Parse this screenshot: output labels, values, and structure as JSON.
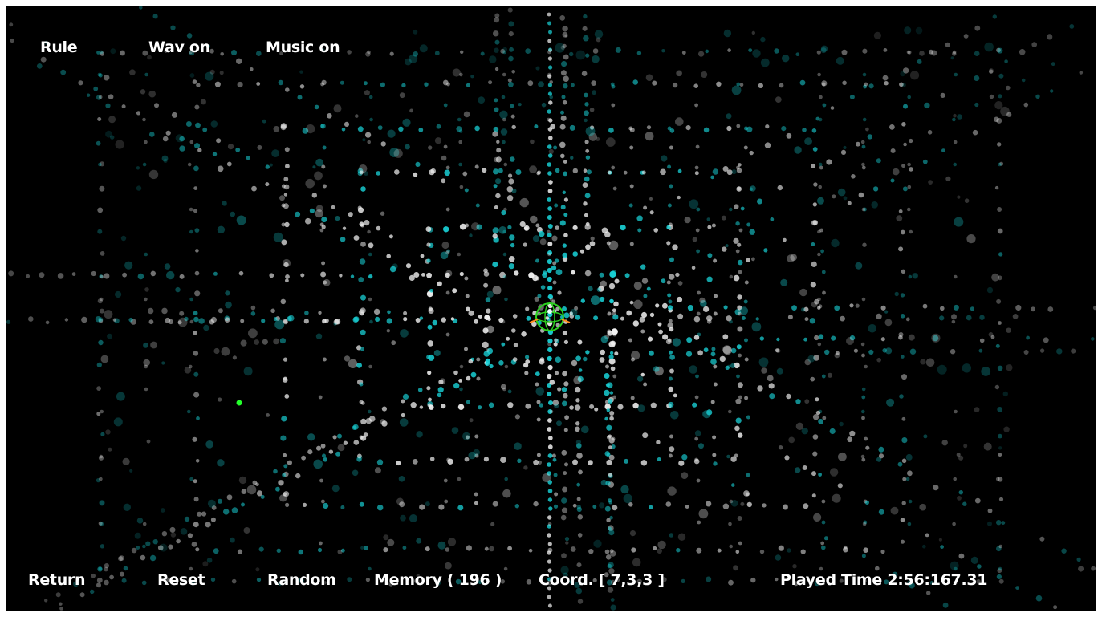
{
  "top_menu": {
    "rule": "Rule",
    "wav": "Wav on",
    "music": "Music on"
  },
  "bottom_bar": {
    "return": "Return",
    "reset": "Reset",
    "random": "Random",
    "memory": "Memory ( 196 )",
    "coord": "Coord. [ 7,3,3 ]",
    "played_time": "Played Time 2:56:167.31"
  },
  "colors": {
    "background": "#000000",
    "node_white": "#f2f2f2",
    "node_cyan": "#19d3d8",
    "cursor_green": "#2bd11f",
    "marker_green": "#23ff2a",
    "pointer_orange": "#ff8a1c",
    "text": "#ffffff"
  },
  "icons": {
    "cursor": "green-sphere-cursor-icon",
    "marker": "green-dot-marker-icon"
  }
}
